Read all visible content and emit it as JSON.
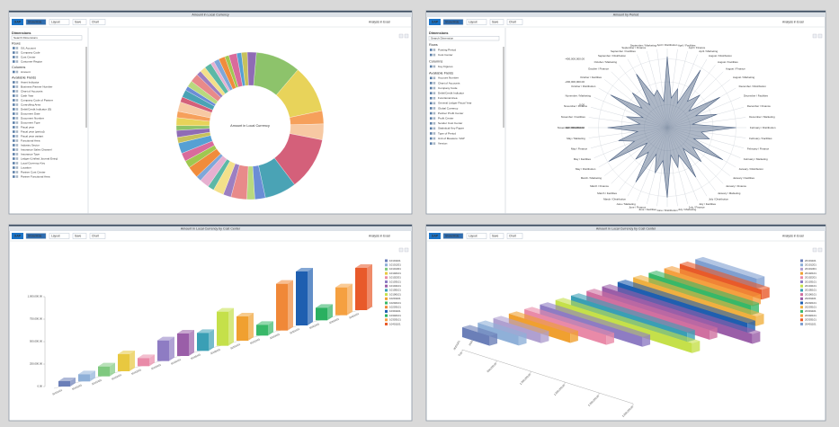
{
  "toolbar": {
    "logo": "SAP",
    "show_hide": "Show/Hide",
    "layout": "Layout",
    "save": "Save",
    "chart": "Chart",
    "excel": "Analysis in Excel"
  },
  "panels": [
    {
      "title": "Amount in Local Currency",
      "sidebar": {
        "heading": "Dimensions",
        "search": "Search Dimensions",
        "rows_label": "Rows",
        "rows": [
          "G/L Account",
          "Company Code",
          "Cost Center",
          "Customer Region"
        ],
        "columns_label": "Columns",
        "columns": [
          "Amount"
        ],
        "fields_label": "Available Fields",
        "fields": [
          "Asset Indicator",
          "Business Partner Number",
          "Chart of Accounts",
          "Cash Year",
          "Company Code of Partner",
          "Controlling Area",
          "Debit/Credit Indicator (D)",
          "Document Date",
          "Document Number",
          "Document Type",
          "Fiscal year",
          "Fiscal year (period)",
          "Fiscal year variant",
          "Functional Area",
          "Industry Sector",
          "Insurance Sales Channel",
          "Insurance Type",
          "Ledger (Unified Journal Entry)",
          "Local Currency Key",
          "Location",
          "Partner Cost Center",
          "Partner Functional Area"
        ]
      },
      "chart": {
        "type": "donut",
        "center_label": "Amount in Local Currency",
        "values": [
          8.5,
          9,
          2.5,
          3,
          10,
          6,
          2,
          1.5,
          3,
          1.5,
          2,
          1.2,
          1.8,
          1,
          2.2,
          1.4,
          1.6,
          2,
          1.1,
          1.3,
          0.9,
          1.5,
          1.2,
          1.8,
          1,
          1.4,
          0.8,
          1.2,
          1.6,
          0.9,
          1.1,
          1.3,
          0.7,
          1,
          1.2,
          0.8,
          1.5,
          0.9,
          1.1,
          1.7
        ],
        "colors": [
          "#8dc36b",
          "#e8d35a",
          "#f6a05b",
          "#f7c9a3",
          "#d4607a",
          "#4aa3b5",
          "#6b8dd6",
          "#b9d97e",
          "#e88a8a",
          "#9c7fc1",
          "#f3e08a",
          "#5cb8a6",
          "#e6b0d0",
          "#7fa7d9",
          "#f08c3c",
          "#a0c850",
          "#d96b9c",
          "#56a0d3",
          "#c7c15c",
          "#8f6bb5",
          "#8dc36b",
          "#e8d35a",
          "#f6a05b",
          "#f7c9a3",
          "#d4607a",
          "#4aa3b5",
          "#6b8dd6",
          "#b9d97e",
          "#e88a8a",
          "#9c7fc1",
          "#f3e08a",
          "#5cb8a6",
          "#e6b0d0",
          "#7fa7d9",
          "#f08c3c",
          "#a0c850",
          "#d96b9c",
          "#56a0d3",
          "#c7c15c",
          "#8f6bb5"
        ]
      }
    },
    {
      "title": "Amount by Period",
      "sidebar": {
        "heading": "Dimensions",
        "search": "Search Dimension",
        "rows_label": "Rows",
        "rows": [
          "Posting Period",
          "Cost Center"
        ],
        "columns_label": "Columns",
        "columns": [
          "Key Figures"
        ],
        "fields_label": "Available Fields",
        "fields": [
          "Account Number",
          "Chart of Accounts",
          "Company Code",
          "Debit/Credit Indicator",
          "Functional Area",
          "General Ledger Fiscal Year",
          "Global Currency",
          "Partner Profit Center",
          "Profit Center",
          "Sender Cost Center",
          "Statistical Key Figure",
          "Type of Period",
          "Unit of Measure: SAP",
          "Version"
        ]
      },
      "chart": {
        "type": "radar",
        "color": "#4a5f80",
        "categories": [
          "April / Distribution",
          "April / Facilities",
          "April / Finance",
          "April / Marketing",
          "August / Distribution",
          "August / Facilities",
          "August / Finance",
          "August / Marketing",
          "December / Distribution",
          "December / Facilities",
          "December / Finance",
          "December / Marketing",
          "February / Distribution",
          "February / Facilities",
          "February / Finance",
          "February / Marketing",
          "January / Distribution",
          "January / Facilities",
          "January / Finance",
          "January / Marketing",
          "July / Distribution",
          "July / Facilities",
          "July / Finance",
          "July / Marketing",
          "June / Distribution",
          "June / Facilities",
          "June / Finance",
          "June / Marketing",
          "March / Distribution",
          "March / Facilities",
          "March / Finance",
          "March / Marketing",
          "May / Distribution",
          "May / Facilities",
          "May / Finance",
          "May / Marketing",
          "November / Distribution",
          "November / Facilities",
          "November / Finance",
          "November / Marketing",
          "October / Distribution",
          "October / Facilities",
          "October / Finance",
          "October / Marketing",
          "September / Distribution",
          "September / Facilities",
          "September / Finance",
          "September / Marketing"
        ],
        "values": [
          -420000000,
          -60000000,
          -150000000,
          -30000000,
          -380000000,
          -90000000,
          -200000000,
          -40000000,
          -330000000,
          -70000000,
          -250000000,
          -20000000,
          -400000000,
          -100000000,
          -180000000,
          -50000000,
          -360000000,
          -80000000,
          -220000000,
          -30000000,
          -300000000,
          -60000000,
          -160000000,
          -40000000,
          -410000000,
          -90000000,
          -210000000,
          -50000000,
          -350000000,
          -70000000,
          -190000000,
          -20000000,
          -390000000,
          -110000000,
          -240000000,
          -60000000,
          -320000000,
          -40000000,
          -170000000,
          -30000000,
          -370000000,
          -80000000,
          -230000000,
          -50000000,
          -340000000,
          -100000000,
          -140000000,
          -30000000
        ],
        "rlim": [
          200000000,
          -490000000
        ],
        "rticks": [
          {
            "value": 200000000,
            "label": "200,000,000.00"
          },
          {
            "value": 0,
            "label": "0.00"
          },
          {
            "value": -200000000,
            "label": "-200,000,000.00"
          },
          {
            "value": -400000000,
            "label": "-400,000,000.00"
          }
        ]
      }
    },
    {
      "title": "Amount in Local Currency by Cost Center",
      "chart": {
        "type": "bar3d",
        "categories": [
          "10101101",
          "10101201",
          "10101301",
          "10102101",
          "10102201",
          "10103101",
          "10104101",
          "10105101",
          "10106101",
          "10201101",
          "10202101",
          "10203101",
          "10301101",
          "10302101",
          "10303101",
          "10401101"
        ],
        "values": [
          60000,
          80000,
          110000,
          190000,
          90000,
          230000,
          250000,
          200000,
          380000,
          270000,
          120000,
          520000,
          600000,
          140000,
          310000,
          470000
        ],
        "colors": [
          "#6b7fb8",
          "#8fb0d8",
          "#7fc97f",
          "#e8c840",
          "#e98aa8",
          "#8e7cc3",
          "#9a5ea8",
          "#3a9fb5",
          "#c5e04a",
          "#f0a030",
          "#38b868",
          "#f08838",
          "#1f5fb0",
          "#2ab060",
          "#f5a040",
          "#e85a2a"
        ],
        "ylim": [
          0,
          1000000
        ],
        "yticks": [
          {
            "value": 0,
            "label": "0.00"
          },
          {
            "value": 250000,
            "label": "250,000.00"
          },
          {
            "value": 500000,
            "label": "500,000.00"
          },
          {
            "value": 750000,
            "label": "750,000.00"
          },
          {
            "value": 1000000,
            "label": "1,000,000.00"
          }
        ]
      }
    },
    {
      "title": "Amount in Local Currency by Cost Center",
      "chart": {
        "type": "hbar3d",
        "categories": [
          "20101101",
          "20101201",
          "20101301",
          "20102101",
          "20102201",
          "20103101",
          "20104101",
          "20105101",
          "20106101",
          "20201101",
          "20202101",
          "20203101",
          "20301101",
          "20302101",
          "20303101",
          "20401101"
        ],
        "values": [
          400000,
          600000,
          700000,
          900000,
          1200000,
          1500000,
          2000000,
          1700000,
          1800000,
          2200000,
          1900000,
          1800000,
          1500000,
          1300000,
          1200000,
          900000
        ],
        "colors": [
          "#6b7fb8",
          "#8fb0d8",
          "#b0a0d0",
          "#f0a030",
          "#e98aa8",
          "#8e7cc3",
          "#c5e04a",
          "#3a9fb5",
          "#d070a0",
          "#9a5ea8",
          "#1f5fb0",
          "#f0b040",
          "#38b868",
          "#f5a040",
          "#e85a2a",
          "#7f9fd0"
        ],
        "xlim": [
          0,
          2500000
        ],
        "xticks": [
          {
            "value": 0,
            "label": "0.00"
          },
          {
            "value": 500000,
            "label": "500,000.00"
          },
          {
            "value": 1000000,
            "label": "1,000,000.00"
          },
          {
            "value": 1500000,
            "label": "1,500,000.00"
          },
          {
            "value": 2000000,
            "label": "2,000,000.00"
          },
          {
            "value": 2500000,
            "label": "2,500,000.00"
          }
        ]
      }
    }
  ]
}
